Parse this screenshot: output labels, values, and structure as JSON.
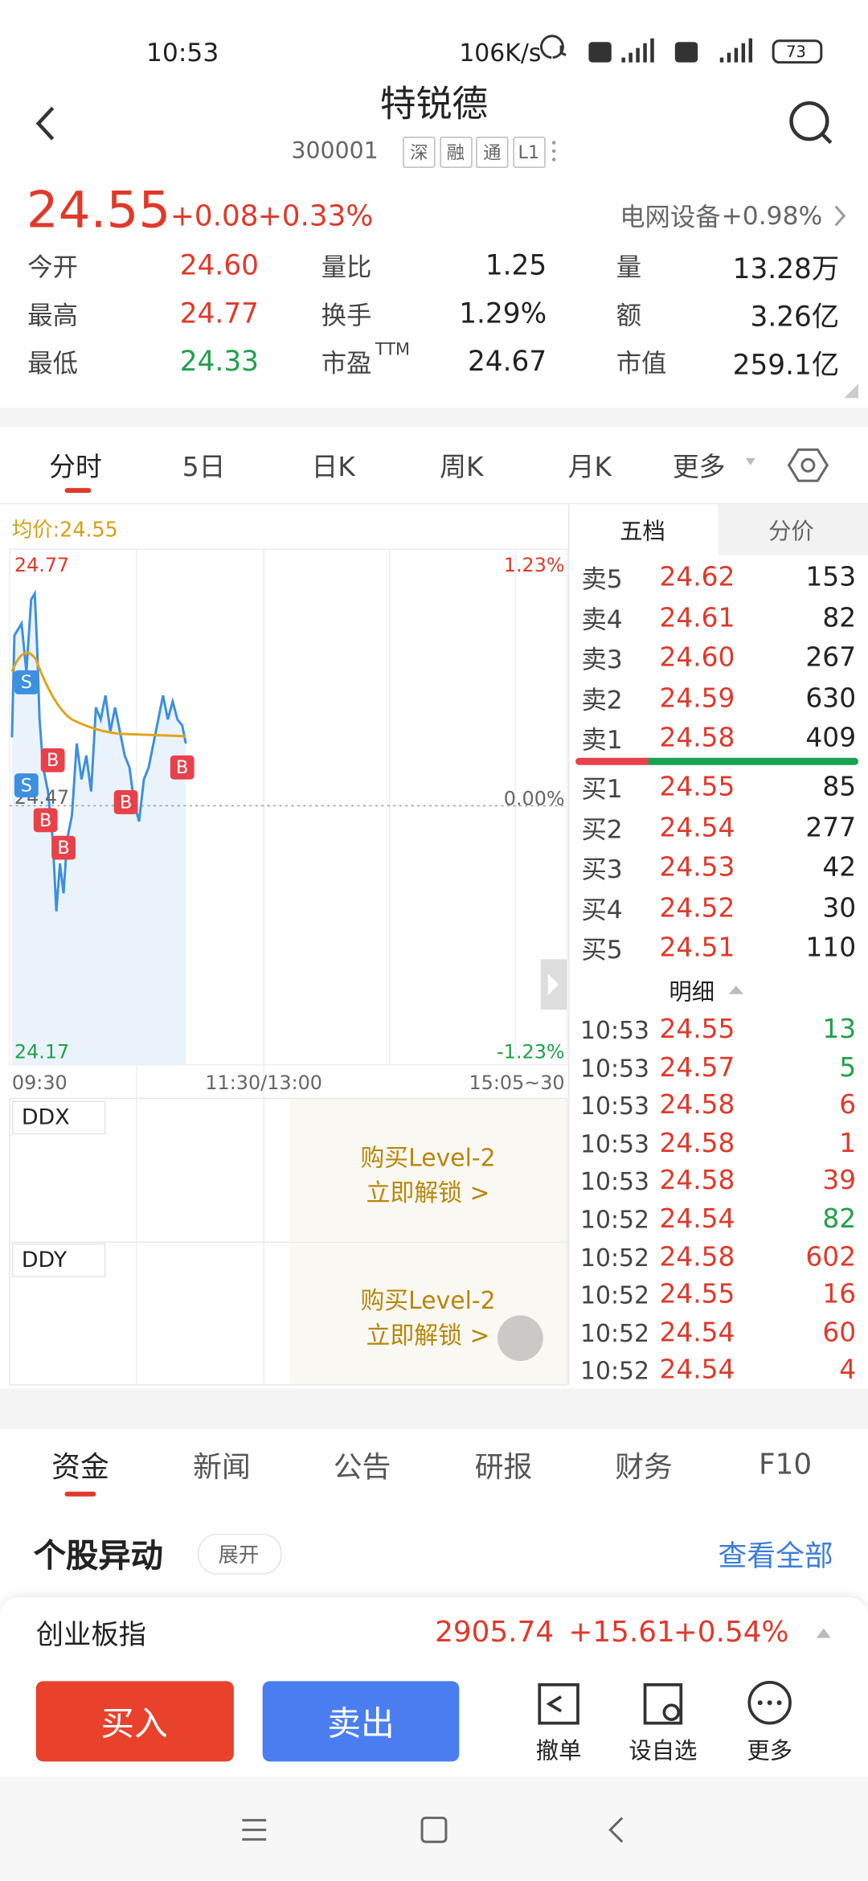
{
  "status_bar": {
    "time": "10:53",
    "speed": "106K/s",
    "battery": "73"
  },
  "header": {
    "title": "特锐德",
    "code": "300001",
    "tags": [
      "深",
      "融",
      "通",
      "L1"
    ]
  },
  "quote": {
    "price": "24.55",
    "change": "+0.08",
    "pct": "+0.33%",
    "sector": "电网设备",
    "sector_pct": "+0.98%"
  },
  "stats": [
    [
      {
        "label": "今开",
        "value": "24.60",
        "color": "#e0392b"
      },
      {
        "label": "量比",
        "value": "1.25"
      },
      {
        "label": "量",
        "value": "13.28万"
      }
    ],
    [
      {
        "label": "最高",
        "value": "24.77",
        "color": "#e0392b"
      },
      {
        "label": "换手",
        "value": "1.29%"
      },
      {
        "label": "额",
        "value": "3.26亿"
      }
    ],
    [
      {
        "label": "最低",
        "value": "24.33",
        "color": "#22a04b"
      },
      {
        "label": "市盈",
        "sup": "TTM",
        "value": "24.67"
      },
      {
        "label": "市值",
        "value": "259.1亿"
      }
    ]
  ],
  "tabs": [
    "分时",
    "5日",
    "日K",
    "周K",
    "月K",
    "更多"
  ],
  "chart": {
    "avg_label": "均价:24.55",
    "y_high": "24.77",
    "y_mid": "24.47",
    "y_low": "24.17",
    "pct_high": "1.23%",
    "pct_zero": "0.00%",
    "pct_low": "-1.23%",
    "times": [
      "09:30",
      "11:30/13:00",
      "15:05~30"
    ],
    "markers": [
      "S",
      "S",
      "B",
      "B",
      "B",
      "B",
      "B"
    ]
  },
  "indicators": [
    {
      "name": "DDX",
      "lock_title": "购买Level-2",
      "lock_action": "立即解锁 >"
    },
    {
      "name": "DDY",
      "lock_title": "购买Level-2",
      "lock_action": "立即解锁 >"
    }
  ],
  "order_book": {
    "tabs": [
      "五档",
      "分价"
    ],
    "asks": [
      [
        "卖5",
        "24.62",
        "153"
      ],
      [
        "卖4",
        "24.61",
        "82"
      ],
      [
        "卖3",
        "24.60",
        "267"
      ],
      [
        "卖2",
        "24.59",
        "630"
      ],
      [
        "卖1",
        "24.58",
        "409"
      ]
    ],
    "bids": [
      [
        "买1",
        "24.55",
        "85"
      ],
      [
        "买2",
        "24.54",
        "277"
      ],
      [
        "买3",
        "24.53",
        "42"
      ],
      [
        "买4",
        "24.52",
        "30"
      ],
      [
        "买5",
        "24.51",
        "110"
      ]
    ],
    "detail_label": "明细",
    "trades": [
      {
        "time": "10:53",
        "price": "24.55",
        "volume": "13",
        "color": "#22a04b"
      },
      {
        "time": "10:53",
        "price": "24.57",
        "volume": "5",
        "color": "#22a04b"
      },
      {
        "time": "10:53",
        "price": "24.58",
        "volume": "6",
        "color": "#e0392b"
      },
      {
        "time": "10:53",
        "price": "24.58",
        "volume": "1",
        "color": "#e0392b"
      },
      {
        "time": "10:53",
        "price": "24.58",
        "volume": "39",
        "color": "#e0392b"
      },
      {
        "time": "10:52",
        "price": "24.54",
        "volume": "82",
        "color": "#22a04b"
      },
      {
        "time": "10:52",
        "price": "24.58",
        "volume": "602",
        "color": "#e0392b"
      },
      {
        "time": "10:52",
        "price": "24.55",
        "volume": "16",
        "color": "#e0392b"
      },
      {
        "time": "10:52",
        "price": "24.54",
        "volume": "60",
        "color": "#e0392b"
      },
      {
        "time": "10:52",
        "price": "24.54",
        "volume": "4",
        "color": "#e0392b"
      }
    ]
  },
  "info_tabs": [
    "资金",
    "新闻",
    "公告",
    "研报",
    "财务",
    "F10"
  ],
  "section": {
    "title": "个股异动",
    "expand": "展开",
    "view_all": "查看全部"
  },
  "index_bar": {
    "name": "创业板指",
    "value": "2905.74",
    "change": "+15.61",
    "pct": "+0.54%"
  },
  "actions": {
    "buy": "买入",
    "sell": "卖出",
    "tools": [
      "撤单",
      "设自选",
      "更多"
    ]
  }
}
